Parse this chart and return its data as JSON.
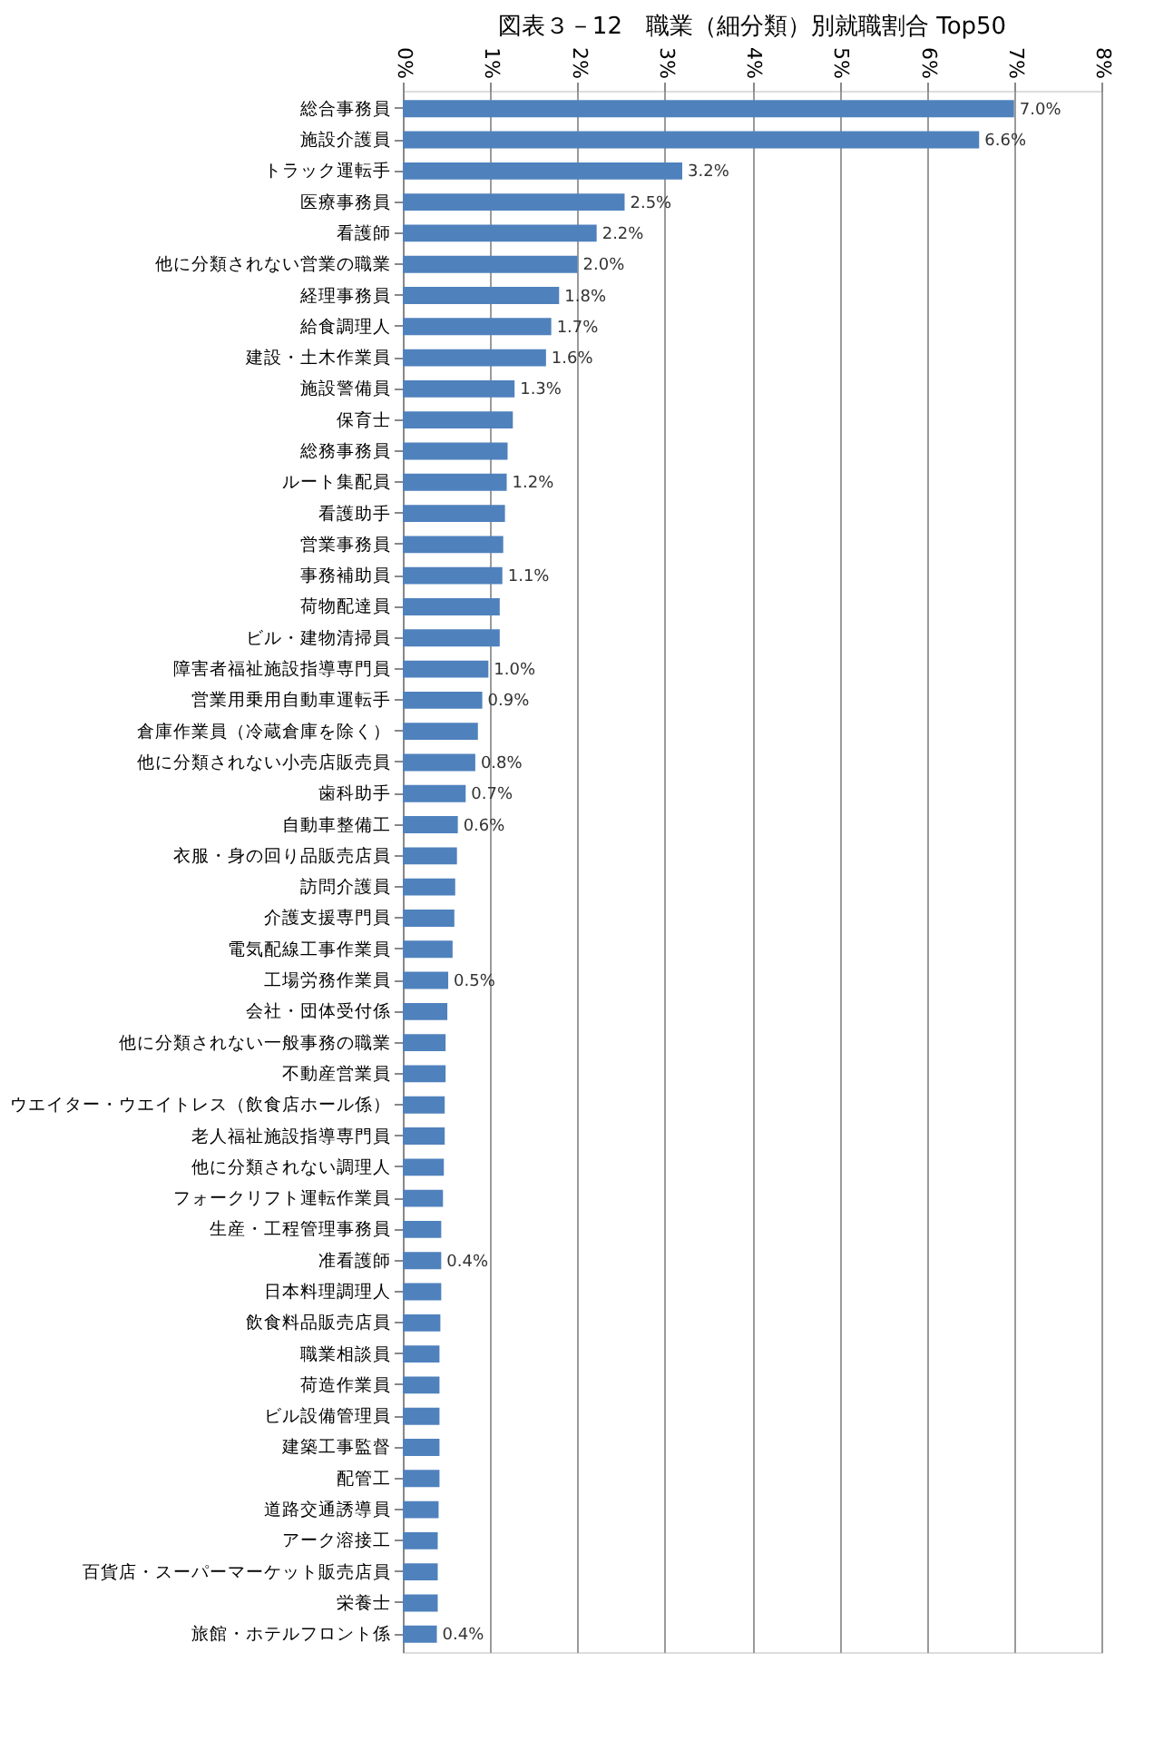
{
  "chart_data": {
    "type": "bar",
    "orientation": "horizontal",
    "title": "図表３－12　職業（細分類）別就職割合 Top50",
    "categories": [
      "総合事務員",
      "施設介護員",
      "トラック運転手",
      "医療事務員",
      "看護師",
      "他に分類されない営業の職業",
      "経理事務員",
      "給食調理人",
      "建設・土木作業員",
      "施設警備員",
      "保育士",
      "総務事務員",
      "ルート集配員",
      "看護助手",
      "営業事務員",
      "事務補助員",
      "荷物配達員",
      "ビル・建物清掃員",
      "障害者福祉施設指導専門員",
      "営業用乗用自動車運転手",
      "倉庫作業員（冷蔵倉庫を除く）",
      "他に分類されない小売店販売員",
      "歯科助手",
      "自動車整備工",
      "衣服・身の回り品販売店員",
      "訪問介護員",
      "介護支援専門員",
      "電気配線工事作業員",
      "工場労務作業員",
      "会社・団体受付係",
      "他に分類されない一般事務の職業",
      "不動産営業員",
      "ウエイター・ウエイトレス（飲食店ホール係）",
      "老人福祉施設指導専門員",
      "他に分類されない調理人",
      "フォークリフト運転作業員",
      "生産・工程管理事務員",
      "准看護師",
      "日本料理調理人",
      "飲食料品販売店員",
      "職業相談員",
      "荷造作業員",
      "ビル設備管理員",
      "建築工事監督",
      "配管工",
      "道路交通誘導員",
      "アーク溶接工",
      "百貨店・スーパーマーケット販売店員",
      "栄養士",
      "旅館・ホテルフロント係"
    ],
    "values": [
      7.0,
      6.6,
      3.2,
      2.54,
      2.22,
      2.0,
      1.79,
      1.7,
      1.64,
      1.28,
      1.26,
      1.2,
      1.19,
      1.17,
      1.15,
      1.14,
      1.11,
      1.11,
      0.98,
      0.91,
      0.86,
      0.83,
      0.72,
      0.63,
      0.62,
      0.6,
      0.59,
      0.57,
      0.52,
      0.51,
      0.49,
      0.49,
      0.48,
      0.48,
      0.47,
      0.46,
      0.44,
      0.44,
      0.44,
      0.43,
      0.42,
      0.42,
      0.42,
      0.42,
      0.42,
      0.41,
      0.4,
      0.4,
      0.4,
      0.39
    ],
    "value_labels": [
      "7.0%",
      "6.6%",
      "3.2%",
      "2.5%",
      "2.2%",
      "2.0%",
      "1.8%",
      "1.7%",
      "1.6%",
      "1.3%",
      null,
      null,
      "1.2%",
      null,
      null,
      "1.1%",
      null,
      null,
      "1.0%",
      "0.9%",
      null,
      "0.8%",
      "0.7%",
      "0.6%",
      null,
      null,
      null,
      null,
      "0.5%",
      null,
      null,
      null,
      null,
      null,
      null,
      null,
      null,
      "0.4%",
      null,
      null,
      null,
      null,
      null,
      null,
      null,
      null,
      null,
      null,
      null,
      "0.4%"
    ],
    "color": "#4f81bd",
    "xlim": [
      0,
      8
    ],
    "xticks": [
      {
        "value": 0,
        "label": "0%"
      },
      {
        "value": 1,
        "label": "1%"
      },
      {
        "value": 2,
        "label": "2%"
      },
      {
        "value": 3,
        "label": "3%"
      },
      {
        "value": 4,
        "label": "4%"
      },
      {
        "value": 5,
        "label": "5%"
      },
      {
        "value": 6,
        "label": "6%"
      },
      {
        "value": 7,
        "label": "7%"
      },
      {
        "value": 8,
        "label": "8%"
      }
    ],
    "grid": "x"
  }
}
